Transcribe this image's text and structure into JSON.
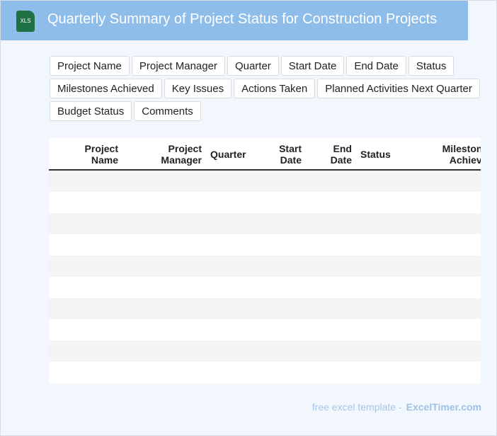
{
  "header": {
    "icon": "XLS",
    "title": "Quarterly Summary of Project Status for Construction Projects"
  },
  "tags": [
    "Project Name",
    "Project Manager",
    "Quarter",
    "Start Date",
    "End Date",
    "Status",
    "Milestones Achieved",
    "Key Issues",
    "Actions Taken",
    "Planned Activities Next Quarter",
    "Budget Status",
    "Comments"
  ],
  "table": {
    "columns": [
      "Project Name",
      "Project Manager",
      "Quarter",
      "Start Date",
      "End Date",
      "Status",
      "Milestones Achieved"
    ]
  },
  "footer": {
    "text": "free excel template -",
    "link": "ExcelTimer.com"
  }
}
